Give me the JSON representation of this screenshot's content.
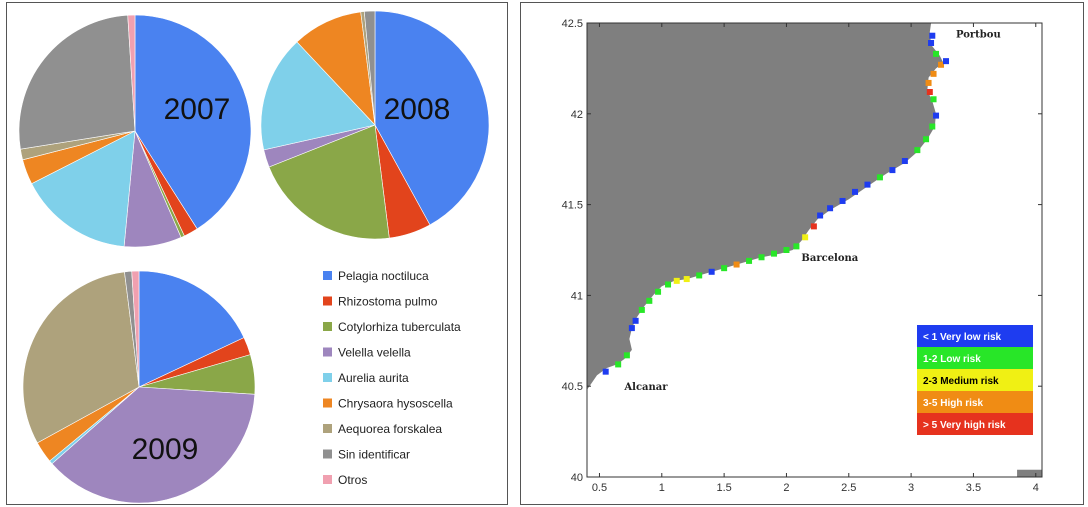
{
  "colors": {
    "Pelagia noctiluca": "#4a82f0",
    "Rhizostoma pulmo": "#e2441c",
    "Cotylorhiza tuberculata": "#8aa748",
    "Velella velella": "#9e86be",
    "Aurelia aurita": "#7fd0ea",
    "Chrysaora hysoscella": "#ee8622",
    "Aequorea forskalea": "#aea27c",
    "Sin identificar": "#909090",
    "Otros": "#f0a0b0"
  },
  "chart_data": [
    {
      "type": "pie",
      "title": "2007",
      "categories": [
        "Pelagia noctiluca",
        "Rhizostoma pulmo",
        "Cotylorhiza tuberculata",
        "Velella velella",
        "Aurelia aurita",
        "Chrysaora hysoscella",
        "Aequorea forskalea",
        "Sin identificar",
        "Otros"
      ],
      "values": [
        41,
        2,
        0.5,
        8,
        16,
        3.5,
        1.5,
        26.5,
        1
      ]
    },
    {
      "type": "pie",
      "title": "2008",
      "categories": [
        "Pelagia noctiluca",
        "Rhizostoma pulmo",
        "Cotylorhiza tuberculata",
        "Velella velella",
        "Aurelia aurita",
        "Chrysaora hysoscella",
        "Aequorea forskalea",
        "Sin identificar",
        "Otros"
      ],
      "values": [
        42,
        6,
        21,
        2.5,
        16.5,
        10,
        0.5,
        1.5,
        0
      ]
    },
    {
      "type": "pie",
      "title": "2009",
      "categories": [
        "Pelagia noctiluca",
        "Rhizostoma pulmo",
        "Cotylorhiza tuberculata",
        "Velella velella",
        "Aurelia aurita",
        "Chrysaora hysoscella",
        "Aequorea forskalea",
        "Sin identificar",
        "Otros"
      ],
      "values": [
        18,
        2.5,
        5.5,
        37.5,
        0.5,
        3,
        31,
        1,
        1
      ]
    },
    {
      "type": "scatter",
      "title": "",
      "xlim": [
        0.4,
        4.05
      ],
      "ylim": [
        40.0,
        42.5
      ],
      "xticks": [
        "0.5",
        "1",
        "1.5",
        "2",
        "2.5",
        "3",
        "3.5",
        "4"
      ],
      "yticks": [
        "40",
        "40.5",
        "41",
        "41.5",
        "42",
        "42.5"
      ],
      "places": [
        "Portbou",
        "Barcelona",
        "Alcanar"
      ],
      "risk_legend": [
        {
          "label": "< 1 Very low risk",
          "color": "#1e3cf0",
          "text_color": "#ffffff"
        },
        {
          "label": "1-2 Low risk",
          "color": "#28e628",
          "text_color": "#ffffff"
        },
        {
          "label": "2-3 Medium risk",
          "color": "#f0f014",
          "text_color": "#000000"
        },
        {
          "label": "3-5 High risk",
          "color": "#f08c14",
          "text_color": "#ffffff"
        },
        {
          "label": "> 5 Very high risk",
          "color": "#e6321e",
          "text_color": "#ffffff"
        }
      ],
      "points": [
        {
          "x": 0.55,
          "y": 40.58,
          "risk": 0
        },
        {
          "x": 0.65,
          "y": 40.62,
          "risk": 1
        },
        {
          "x": 0.72,
          "y": 40.67,
          "risk": 1
        },
        {
          "x": 0.76,
          "y": 40.82,
          "risk": 0
        },
        {
          "x": 0.79,
          "y": 40.86,
          "risk": 0
        },
        {
          "x": 0.84,
          "y": 40.92,
          "risk": 1
        },
        {
          "x": 0.9,
          "y": 40.97,
          "risk": 1
        },
        {
          "x": 0.97,
          "y": 41.02,
          "risk": 1
        },
        {
          "x": 1.05,
          "y": 41.06,
          "risk": 1
        },
        {
          "x": 1.12,
          "y": 41.08,
          "risk": 2
        },
        {
          "x": 1.2,
          "y": 41.09,
          "risk": 2
        },
        {
          "x": 1.3,
          "y": 41.11,
          "risk": 1
        },
        {
          "x": 1.4,
          "y": 41.13,
          "risk": 0
        },
        {
          "x": 1.5,
          "y": 41.15,
          "risk": 1
        },
        {
          "x": 1.6,
          "y": 41.17,
          "risk": 3
        },
        {
          "x": 1.7,
          "y": 41.19,
          "risk": 1
        },
        {
          "x": 1.8,
          "y": 41.21,
          "risk": 1
        },
        {
          "x": 1.9,
          "y": 41.23,
          "risk": 1
        },
        {
          "x": 2.0,
          "y": 41.25,
          "risk": 1
        },
        {
          "x": 2.08,
          "y": 41.27,
          "risk": 1
        },
        {
          "x": 2.15,
          "y": 41.32,
          "risk": 2
        },
        {
          "x": 2.22,
          "y": 41.38,
          "risk": 4
        },
        {
          "x": 2.27,
          "y": 41.44,
          "risk": 0
        },
        {
          "x": 2.35,
          "y": 41.48,
          "risk": 0
        },
        {
          "x": 2.45,
          "y": 41.52,
          "risk": 0
        },
        {
          "x": 2.55,
          "y": 41.57,
          "risk": 0
        },
        {
          "x": 2.65,
          "y": 41.61,
          "risk": 0
        },
        {
          "x": 2.75,
          "y": 41.65,
          "risk": 1
        },
        {
          "x": 2.85,
          "y": 41.69,
          "risk": 0
        },
        {
          "x": 2.95,
          "y": 41.74,
          "risk": 0
        },
        {
          "x": 3.05,
          "y": 41.8,
          "risk": 1
        },
        {
          "x": 3.12,
          "y": 41.86,
          "risk": 1
        },
        {
          "x": 3.17,
          "y": 41.93,
          "risk": 1
        },
        {
          "x": 3.2,
          "y": 41.99,
          "risk": 0
        },
        {
          "x": 3.18,
          "y": 42.08,
          "risk": 1
        },
        {
          "x": 3.15,
          "y": 42.12,
          "risk": 4
        },
        {
          "x": 3.14,
          "y": 42.17,
          "risk": 3
        },
        {
          "x": 3.18,
          "y": 42.22,
          "risk": 3
        },
        {
          "x": 3.24,
          "y": 42.27,
          "risk": 3
        },
        {
          "x": 3.28,
          "y": 42.29,
          "risk": 0
        },
        {
          "x": 3.2,
          "y": 42.33,
          "risk": 1
        },
        {
          "x": 3.16,
          "y": 42.39,
          "risk": 0
        },
        {
          "x": 3.17,
          "y": 42.43,
          "risk": 0
        }
      ]
    }
  ]
}
